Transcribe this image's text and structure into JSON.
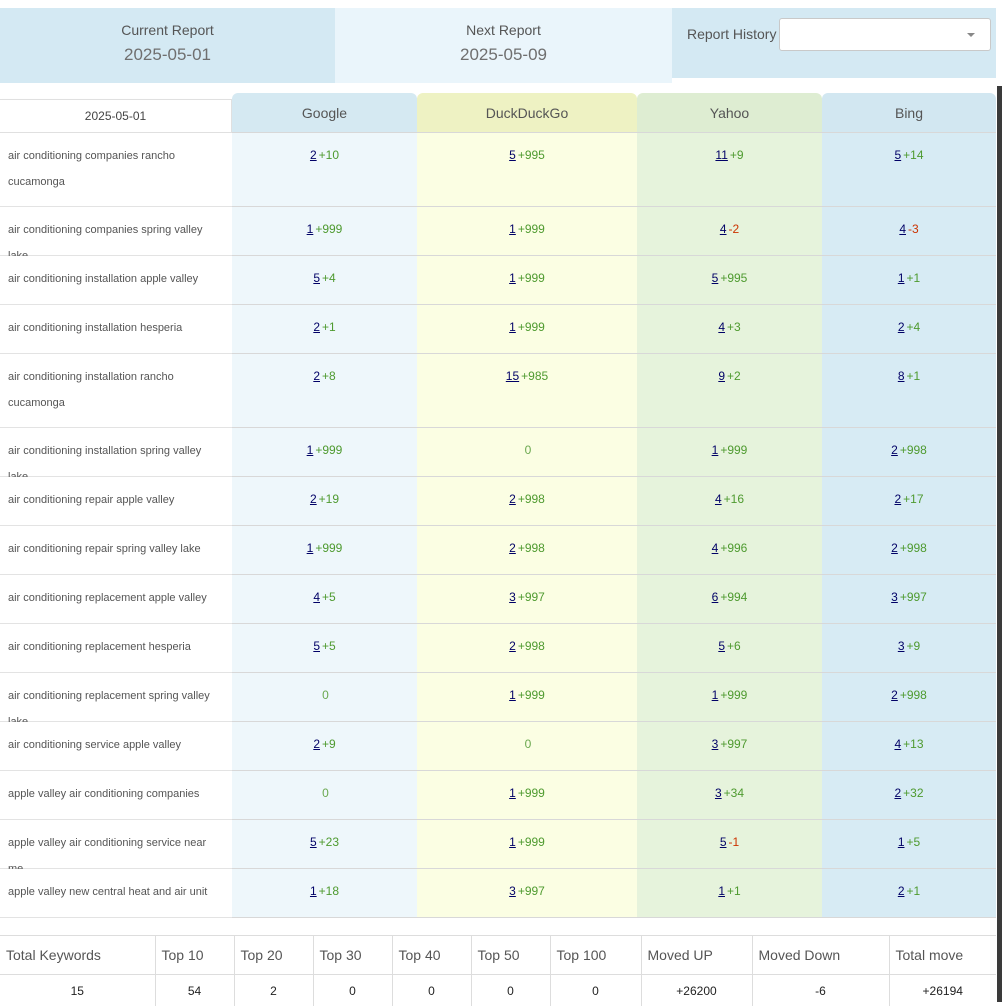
{
  "header": {
    "current_label": "Current Report",
    "current_date": "2025-05-01",
    "next_label": "Next Report",
    "next_date": "2025-05-09",
    "history_label": "Report History",
    "history_value": ""
  },
  "table": {
    "date_header": "2025-05-01",
    "engines": [
      "Google",
      "DuckDuckGo",
      "Yahoo",
      "Bing"
    ],
    "engine_colors": [
      "#eef7fb",
      "#fbfee3",
      "#e6f3dc",
      "#d7ebf4"
    ],
    "rows": [
      {
        "keyword": "air conditioning companies rancho cucamonga",
        "cells": [
          {
            "pos": "2",
            "chg": "+10"
          },
          {
            "pos": "5",
            "chg": "+995"
          },
          {
            "pos": "11",
            "chg": "+9"
          },
          {
            "pos": "5",
            "chg": "+14"
          }
        ]
      },
      {
        "keyword": "air conditioning companies spring valley lake",
        "cells": [
          {
            "pos": "1",
            "chg": "+999"
          },
          {
            "pos": "1",
            "chg": "+999"
          },
          {
            "pos": "4",
            "chg": "-2"
          },
          {
            "pos": "4",
            "chg": "-3"
          }
        ]
      },
      {
        "keyword": "air conditioning installation apple valley",
        "cells": [
          {
            "pos": "5",
            "chg": "+4"
          },
          {
            "pos": "1",
            "chg": "+999"
          },
          {
            "pos": "5",
            "chg": "+995"
          },
          {
            "pos": "1",
            "chg": "+1"
          }
        ]
      },
      {
        "keyword": "air conditioning installation hesperia",
        "cells": [
          {
            "pos": "2",
            "chg": "+1"
          },
          {
            "pos": "1",
            "chg": "+999"
          },
          {
            "pos": "4",
            "chg": "+3"
          },
          {
            "pos": "2",
            "chg": "+4"
          }
        ]
      },
      {
        "keyword": "air conditioning installation rancho cucamonga",
        "cells": [
          {
            "pos": "2",
            "chg": "+8"
          },
          {
            "pos": "15",
            "chg": "+985"
          },
          {
            "pos": "9",
            "chg": "+2"
          },
          {
            "pos": "8",
            "chg": "+1"
          }
        ]
      },
      {
        "keyword": "air conditioning installation spring valley lake",
        "cells": [
          {
            "pos": "1",
            "chg": "+999"
          },
          {
            "pos": "",
            "chg": "0"
          },
          {
            "pos": "1",
            "chg": "+999"
          },
          {
            "pos": "2",
            "chg": "+998"
          }
        ]
      },
      {
        "keyword": "air conditioning repair apple valley",
        "cells": [
          {
            "pos": "2",
            "chg": "+19"
          },
          {
            "pos": "2",
            "chg": "+998"
          },
          {
            "pos": "4",
            "chg": "+16"
          },
          {
            "pos": "2",
            "chg": "+17"
          }
        ]
      },
      {
        "keyword": "air conditioning repair spring valley lake",
        "cells": [
          {
            "pos": "1",
            "chg": "+999"
          },
          {
            "pos": "2",
            "chg": "+998"
          },
          {
            "pos": "4",
            "chg": "+996"
          },
          {
            "pos": "2",
            "chg": "+998"
          }
        ]
      },
      {
        "keyword": "air conditioning replacement apple valley",
        "cells": [
          {
            "pos": "4",
            "chg": "+5"
          },
          {
            "pos": "3",
            "chg": "+997"
          },
          {
            "pos": "6",
            "chg": "+994"
          },
          {
            "pos": "3",
            "chg": "+997"
          }
        ]
      },
      {
        "keyword": "air conditioning replacement hesperia",
        "cells": [
          {
            "pos": "5",
            "chg": "+5"
          },
          {
            "pos": "2",
            "chg": "+998"
          },
          {
            "pos": "5",
            "chg": "+6"
          },
          {
            "pos": "3",
            "chg": "+9"
          }
        ]
      },
      {
        "keyword": "air conditioning replacement spring valley lake",
        "cells": [
          {
            "pos": "",
            "chg": "0"
          },
          {
            "pos": "1",
            "chg": "+999"
          },
          {
            "pos": "1",
            "chg": "+999"
          },
          {
            "pos": "2",
            "chg": "+998"
          }
        ]
      },
      {
        "keyword": "air conditioning service apple valley",
        "cells": [
          {
            "pos": "2",
            "chg": "+9"
          },
          {
            "pos": "",
            "chg": "0"
          },
          {
            "pos": "3",
            "chg": "+997"
          },
          {
            "pos": "4",
            "chg": "+13"
          }
        ]
      },
      {
        "keyword": "apple valley air conditioning companies",
        "cells": [
          {
            "pos": "",
            "chg": "0"
          },
          {
            "pos": "1",
            "chg": "+999"
          },
          {
            "pos": "3",
            "chg": "+34"
          },
          {
            "pos": "2",
            "chg": "+32"
          }
        ]
      },
      {
        "keyword": "apple valley air conditioning service near me",
        "cells": [
          {
            "pos": "5",
            "chg": "+23"
          },
          {
            "pos": "1",
            "chg": "+999"
          },
          {
            "pos": "5",
            "chg": "-1"
          },
          {
            "pos": "1",
            "chg": "+5"
          }
        ]
      },
      {
        "keyword": "apple valley new central heat and air unit",
        "cells": [
          {
            "pos": "1",
            "chg": "+18"
          },
          {
            "pos": "3",
            "chg": "+997"
          },
          {
            "pos": "1",
            "chg": "+1"
          },
          {
            "pos": "2",
            "chg": "+1"
          }
        ]
      }
    ]
  },
  "totals": {
    "headers": [
      "Total Keywords",
      "Top 10",
      "Top 20",
      "Top 30",
      "Top 40",
      "Top 50",
      "Top 100",
      "Moved UP",
      "Moved Down",
      "Total move"
    ],
    "values": [
      "15",
      "54",
      "2",
      "0",
      "0",
      "0",
      "0",
      "+26200",
      "-6",
      "+26194"
    ]
  }
}
